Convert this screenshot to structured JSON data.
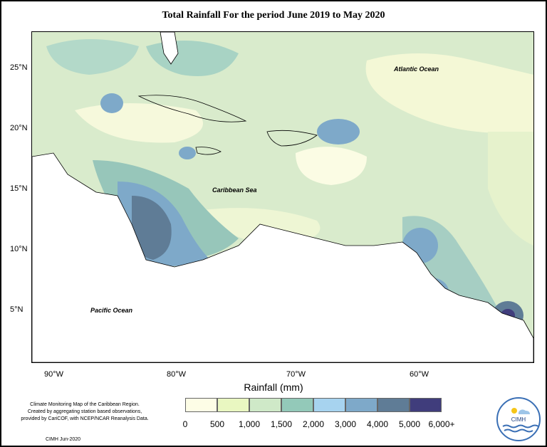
{
  "title": "Total Rainfall For the period June 2019 to May 2020",
  "map": {
    "labels": {
      "atlantic": "Atlantic Ocean",
      "caribbean": "Caribbean Sea",
      "pacific": "Pacific Ocean"
    },
    "lat_ticks": [
      "25°N",
      "20°N",
      "15°N",
      "10°N",
      "5°N"
    ],
    "lon_ticks": [
      "90°W",
      "80°W",
      "70°W",
      "60°W"
    ]
  },
  "legend": {
    "title": "Rainfall (mm)",
    "colors": [
      "#fdfde6",
      "#e9f7c1",
      "#cfe9c8",
      "#93c9b9",
      "#a7d3ef",
      "#7ea9c9",
      "#5f7c96",
      "#403d7c"
    ],
    "labels": [
      "0",
      "500",
      "1,000",
      "1,500",
      "2,000",
      "3,000",
      "4,000",
      "5,000",
      "6,000+"
    ]
  },
  "credit": {
    "lines": [
      "Climate Monitoring Map of the Caribbean Region.",
      "Created by aggregating station based observations,",
      "provided by CariCOF, with NCEP/NCAR Reanalysis Data."
    ],
    "date": "CIMH  Jun-2020"
  },
  "logo": {
    "text": "CIMH"
  }
}
